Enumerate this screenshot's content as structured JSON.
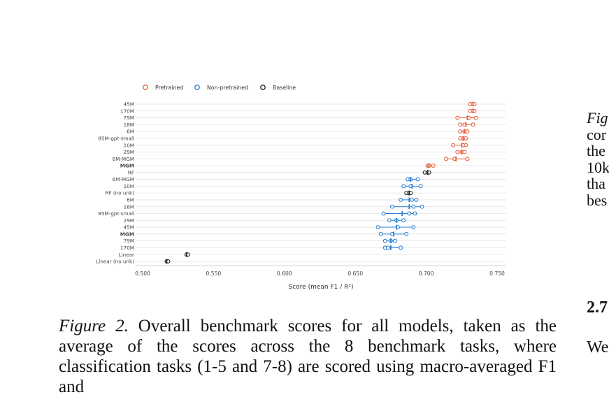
{
  "figure": {
    "caption_label": "Figure 2.",
    "caption_text": "Overall benchmark scores for all models, taken as the average of the scores across the 8 benchmark tasks, where classification tasks (1-5 and 7-8) are scored using macro-averaged F1 and"
  },
  "colors": {
    "pretrained": "#e8603c",
    "nonpretrained": "#2a7fd4",
    "baseline": "#222222",
    "grid": "#e3e3e3",
    "tick": "#444444"
  },
  "chart_data": {
    "type": "scatter",
    "orientation": "horizontal",
    "xlabel": "Score (mean F1 / R²)",
    "xlim": [
      0.5,
      0.76
    ],
    "xticks": [
      0.5,
      0.55,
      0.6,
      0.65,
      0.7,
      0.75
    ],
    "xtick_labels": [
      "0.500",
      "0.550",
      "0.600",
      "0.650",
      "0.700",
      "0.750"
    ],
    "legend": {
      "placement": "top-left",
      "entries": [
        {
          "key": "pretrained",
          "label": "Pretrained"
        },
        {
          "key": "nonpretrained",
          "label": "Non-pretrained"
        },
        {
          "key": "baseline",
          "label": "Baseline"
        }
      ]
    },
    "rows": [
      {
        "label": "45M",
        "group": "pretrained",
        "points": [
          0.731,
          0.733,
          0.734
        ],
        "mean": 0.733,
        "bold": false
      },
      {
        "label": "170M",
        "group": "pretrained",
        "points": [
          0.731,
          0.733,
          0.734
        ],
        "mean": 0.733,
        "bold": false
      },
      {
        "label": "79M",
        "group": "pretrained",
        "points": [
          0.722,
          0.73,
          0.735
        ],
        "mean": 0.729,
        "bold": false
      },
      {
        "label": "18M",
        "group": "pretrained",
        "points": [
          0.724,
          0.727,
          0.733
        ],
        "mean": 0.728,
        "bold": false
      },
      {
        "label": "6M",
        "group": "pretrained",
        "points": [
          0.724,
          0.727,
          0.729
        ],
        "mean": 0.727,
        "bold": false
      },
      {
        "label": "85M-gpt-small",
        "group": "pretrained",
        "points": [
          0.724,
          0.726,
          0.728
        ],
        "mean": 0.726,
        "bold": false
      },
      {
        "label": "10M",
        "group": "pretrained",
        "points": [
          0.719,
          0.726,
          0.728
        ],
        "mean": 0.725,
        "bold": false
      },
      {
        "label": "29M",
        "group": "pretrained",
        "points": [
          0.722,
          0.725,
          0.727
        ],
        "mean": 0.725,
        "bold": false
      },
      {
        "label": "6M-MGM",
        "group": "pretrained",
        "points": [
          0.714,
          0.72,
          0.729
        ],
        "mean": 0.721,
        "bold": false
      },
      {
        "label": "MGM",
        "group": "pretrained",
        "points": [
          0.701,
          0.702,
          0.705
        ],
        "mean": 0.702,
        "bold": true
      },
      {
        "label": "RF",
        "group": "baseline",
        "points": [
          0.699,
          0.701,
          0.702
        ],
        "mean": 0.701,
        "bold": false
      },
      {
        "label": "6M-MGM",
        "group": "nonpretrained",
        "points": [
          0.687,
          0.689,
          0.694
        ],
        "mean": 0.689,
        "bold": false
      },
      {
        "label": "10M",
        "group": "nonpretrained",
        "points": [
          0.684,
          0.689,
          0.696
        ],
        "mean": 0.69,
        "bold": false
      },
      {
        "label": "RF (no unk)",
        "group": "baseline",
        "points": [
          0.686,
          0.688,
          0.689
        ],
        "mean": 0.688,
        "bold": false
      },
      {
        "label": "6M",
        "group": "nonpretrained",
        "points": [
          0.682,
          0.69,
          0.693
        ],
        "mean": 0.688,
        "bold": false
      },
      {
        "label": "18M",
        "group": "nonpretrained",
        "points": [
          0.676,
          0.691,
          0.697
        ],
        "mean": 0.688,
        "bold": false
      },
      {
        "label": "85M-gpt-small",
        "group": "nonpretrained",
        "points": [
          0.67,
          0.688,
          0.692
        ],
        "mean": 0.683,
        "bold": false
      },
      {
        "label": "29M",
        "group": "nonpretrained",
        "points": [
          0.674,
          0.679,
          0.684
        ],
        "mean": 0.679,
        "bold": false
      },
      {
        "label": "45M",
        "group": "nonpretrained",
        "points": [
          0.666,
          0.68,
          0.691
        ],
        "mean": 0.679,
        "bold": false
      },
      {
        "label": "MGM",
        "group": "nonpretrained",
        "points": [
          0.668,
          0.676,
          0.686
        ],
        "mean": 0.677,
        "bold": true
      },
      {
        "label": "79M",
        "group": "nonpretrained",
        "points": [
          0.671,
          0.675,
          0.678
        ],
        "mean": 0.675,
        "bold": false
      },
      {
        "label": "170M",
        "group": "nonpretrained",
        "points": [
          0.671,
          0.673,
          0.682
        ],
        "mean": 0.675,
        "bold": false
      },
      {
        "label": "Linear",
        "group": "baseline",
        "points": [
          0.531,
          0.531,
          0.532
        ],
        "mean": 0.531,
        "bold": false
      },
      {
        "label": "Linear (no unk)",
        "group": "baseline",
        "points": [
          0.517,
          0.517,
          0.518
        ],
        "mean": 0.517,
        "bold": false
      }
    ]
  },
  "sidebar_text": {
    "lines": [
      {
        "text": "Fig",
        "italic": true
      },
      {
        "text": "cor",
        "italic": false
      },
      {
        "text": "the",
        "italic": false
      },
      {
        "text": "10k",
        "italic": false
      },
      {
        "text": "tha",
        "italic": false
      },
      {
        "text": "bes",
        "italic": false
      }
    ],
    "heading": "2.7",
    "paragraph_start": "We"
  }
}
